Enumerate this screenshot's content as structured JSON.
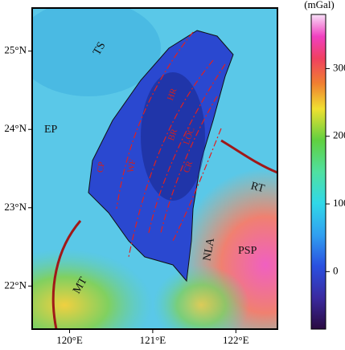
{
  "map": {
    "xlim": [
      119.55,
      122.5
    ],
    "ylim": [
      21.45,
      25.55
    ],
    "xticks": [
      {
        "value": 120,
        "label": "120°E"
      },
      {
        "value": 121,
        "label": "121°E"
      },
      {
        "value": 122,
        "label": "122°E"
      }
    ],
    "yticks": [
      {
        "value": 22,
        "label": "22°N"
      },
      {
        "value": 23,
        "label": "23°N"
      },
      {
        "value": 24,
        "label": "24°N"
      },
      {
        "value": 25,
        "label": "25°N"
      }
    ],
    "colorbar": {
      "label": "(mGal)",
      "lim": [
        -85,
        380
      ],
      "ticks": [
        0,
        100,
        200,
        300
      ]
    },
    "labels": [
      "TS",
      "EP",
      "CP",
      "WF",
      "HR",
      "BR",
      "LOC",
      "CR",
      "RT",
      "PSP",
      "NLA",
      "MT"
    ]
  }
}
